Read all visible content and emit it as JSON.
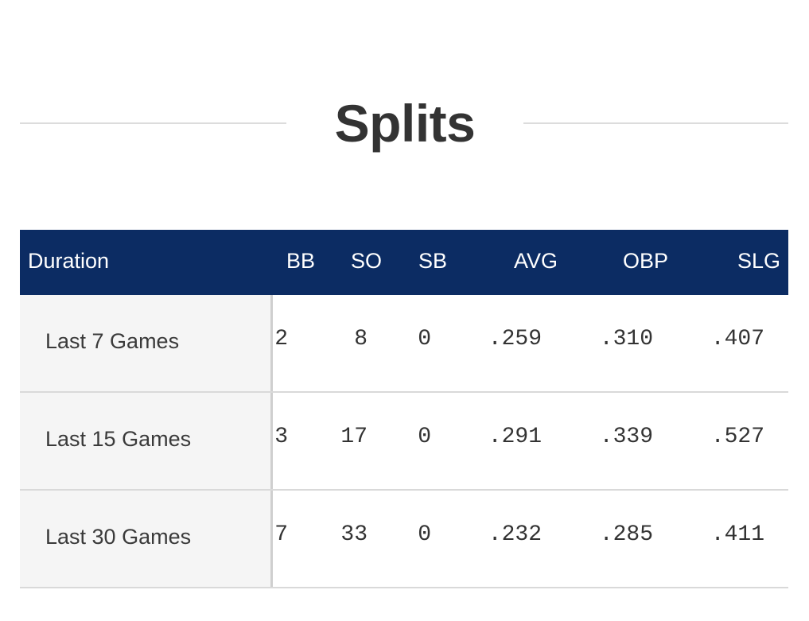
{
  "title": "Splits",
  "table": {
    "headers": {
      "duration": "Duration",
      "bb": "BB",
      "so": "SO",
      "sb": "SB",
      "avg": "AVG",
      "obp": "OBP",
      "slg": "SLG"
    },
    "rows": [
      {
        "label": "Last 7 Games",
        "bb": "2",
        "so": "8",
        "sb": "0",
        "avg": ".259",
        "obp": ".310",
        "slg": ".407"
      },
      {
        "label": "Last 15 Games",
        "bb": "3",
        "so": "17",
        "sb": "0",
        "avg": ".291",
        "obp": ".339",
        "slg": ".527"
      },
      {
        "label": "Last 30 Games",
        "bb": "7",
        "so": "33",
        "sb": "0",
        "avg": ".232",
        "obp": ".285",
        "slg": ".411"
      }
    ]
  },
  "colors": {
    "header_bg": "#0c2c63",
    "header_text": "#ffffff",
    "label_bg": "#f5f5f5",
    "divider": "#d9d9d9"
  }
}
